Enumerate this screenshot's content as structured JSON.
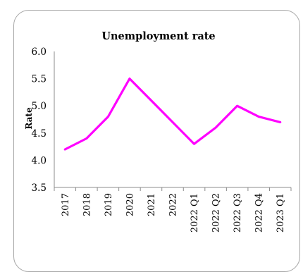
{
  "chart_data": {
    "type": "line",
    "title": "Unemployment rate",
    "ylabel": "Rate",
    "xlabel": "",
    "categories": [
      "2017",
      "2018",
      "2019",
      "2020",
      "2021",
      "2022",
      "2022 Q1",
      "2022 Q2",
      "2022 Q3",
      "2022 Q4",
      "2023 Q1"
    ],
    "series": [
      {
        "values": [
          4.2,
          4.4,
          4.8,
          5.5,
          5.1,
          4.7,
          4.3,
          4.6,
          5.0,
          4.8,
          4.7
        ]
      }
    ],
    "yticks": [
      "3.5",
      "4.0",
      "4.5",
      "5.0",
      "5.5",
      "6.0"
    ],
    "ylim": [
      3.5,
      6.0
    ],
    "grid": false,
    "legend": "none",
    "colors": {
      "series": "#ff00ff",
      "axis": "#8c8c8c",
      "frame": "#a6a6a6"
    }
  }
}
